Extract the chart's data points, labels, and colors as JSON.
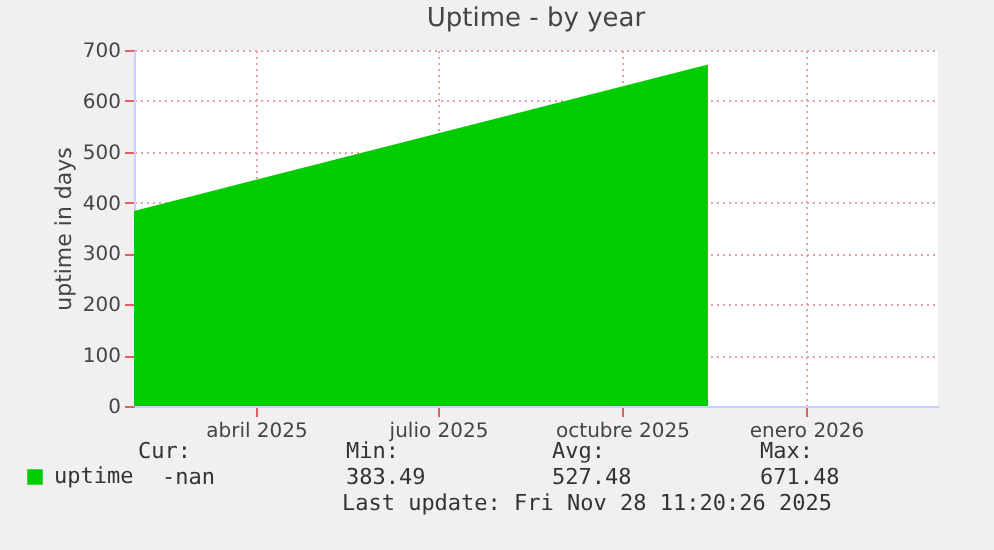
{
  "chart_data": {
    "type": "area",
    "title": "Uptime - by year",
    "ylabel": "uptime in days",
    "x": [
      "2025-02-14",
      "2025-11-28"
    ],
    "series": [
      {
        "name": "uptime",
        "color": "#00cc00",
        "values": [
          383.49,
          671.48
        ]
      }
    ],
    "xlim": [
      "2025-02-14",
      "2026-03-23"
    ],
    "xticks": [
      {
        "value": "2025-04-16",
        "label": "abril 2025"
      },
      {
        "value": "2025-07-16",
        "label": "julio 2025"
      },
      {
        "value": "2025-10-16",
        "label": "octubre 2025"
      },
      {
        "value": "2026-01-16",
        "label": "enero 2026"
      }
    ],
    "ylim": [
      0,
      700
    ],
    "yticks": [
      0,
      100,
      200,
      300,
      400,
      500,
      600,
      700
    ],
    "grid": true,
    "legend": "bottom left",
    "annotations": [
      "Cur:",
      "Min:",
      "Avg:",
      "Max:",
      "-nan",
      "383.49",
      "527.48",
      "671.48",
      "Last update: Fri Nov 28 11:20:26 2025"
    ]
  }
}
